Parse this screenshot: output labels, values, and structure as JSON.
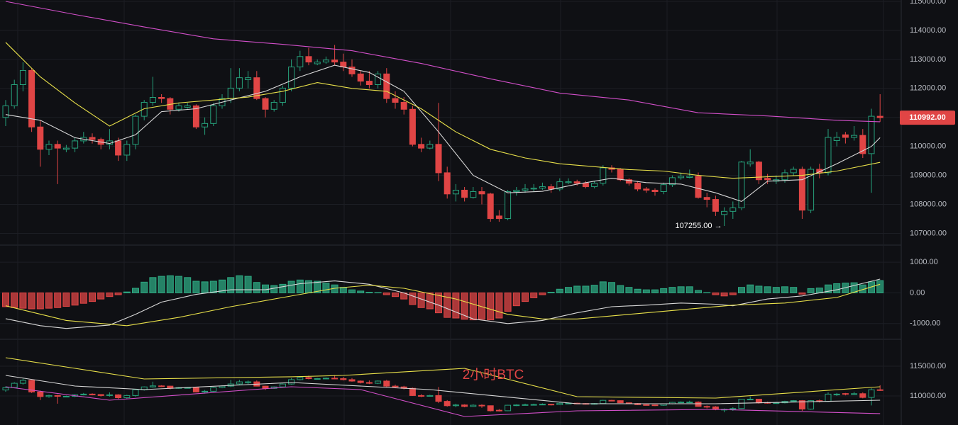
{
  "chart_data": [
    {
      "type": "candlestick",
      "up_color": "#26a17b",
      "down_color": "#e04545",
      "ylim": [
        106620,
        115050
      ],
      "yticks": [
        {
          "value": 107000,
          "label": "107000.00"
        },
        {
          "value": 108000,
          "label": "108000.00"
        },
        {
          "value": 109000,
          "label": "109000.00"
        },
        {
          "value": 110000,
          "label": "110000.00"
        },
        {
          "value": 111000,
          "label": "111000.00"
        },
        {
          "value": 112000,
          "label": "112000.00"
        },
        {
          "value": 113000,
          "label": "113000.00"
        },
        {
          "value": 114000,
          "label": "114000.00"
        },
        {
          "value": 115000,
          "label": "115000.00"
        }
      ],
      "grid": true,
      "last_price": {
        "value": 110992,
        "label": "110992.00"
      },
      "low_annotation": {
        "value": 107255,
        "label": "107255.00 →"
      },
      "candles": [
        [
          111000,
          111600,
          110700,
          111400
        ],
        [
          111400,
          112300,
          111300,
          112130
        ],
        [
          112130,
          112900,
          111900,
          112620
        ],
        [
          112620,
          112700,
          110500,
          110670
        ],
        [
          110670,
          110900,
          109300,
          109900
        ],
        [
          109900,
          110200,
          109700,
          110070
        ],
        [
          110070,
          110200,
          108700,
          109940
        ],
        [
          109900,
          110050,
          109800,
          109940
        ],
        [
          109940,
          110300,
          109800,
          110190
        ],
        [
          110190,
          110500,
          110100,
          110310
        ],
        [
          110310,
          110450,
          110100,
          110240
        ],
        [
          110240,
          110300,
          109900,
          110070
        ],
        [
          110070,
          110600,
          109900,
          110190
        ],
        [
          110190,
          110300,
          109500,
          109700
        ],
        [
          109700,
          110200,
          109500,
          110070
        ],
        [
          110070,
          111100,
          109900,
          111040
        ],
        [
          111040,
          111600,
          110900,
          111520
        ],
        [
          111520,
          112400,
          111400,
          111690
        ],
        [
          111690,
          111800,
          111500,
          111650
        ],
        [
          111650,
          111700,
          111100,
          111280
        ],
        [
          111280,
          111500,
          111200,
          111400
        ],
        [
          111350,
          111500,
          111300,
          111400
        ],
        [
          111400,
          111450,
          110600,
          110670
        ],
        [
          110670,
          111000,
          110400,
          110790
        ],
        [
          110790,
          111500,
          110700,
          111400
        ],
        [
          111400,
          111800,
          111300,
          111650
        ],
        [
          111650,
          112700,
          111500,
          112010
        ],
        [
          112010,
          112700,
          111900,
          112370
        ],
        [
          112300,
          112600,
          112000,
          112370
        ],
        [
          112370,
          112600,
          111600,
          111650
        ],
        [
          111650,
          111700,
          111000,
          111280
        ],
        [
          111280,
          111600,
          111200,
          111520
        ],
        [
          111520,
          112100,
          111400,
          112010
        ],
        [
          112010,
          113000,
          111900,
          112740
        ],
        [
          112740,
          113300,
          112600,
          113100
        ],
        [
          113100,
          113400,
          112800,
          112910
        ],
        [
          112850,
          113000,
          112800,
          112910
        ],
        [
          112910,
          113100,
          112850,
          112980
        ],
        [
          112980,
          113500,
          112800,
          112910
        ],
        [
          112910,
          113200,
          112600,
          112740
        ],
        [
          112740,
          113000,
          112400,
          112500
        ],
        [
          112500,
          112600,
          112100,
          112250
        ],
        [
          112250,
          112600,
          112000,
          112130
        ],
        [
          112130,
          112600,
          112000,
          112500
        ],
        [
          112500,
          112700,
          111500,
          111650
        ],
        [
          111650,
          111900,
          111300,
          111520
        ],
        [
          111520,
          111700,
          111100,
          111280
        ],
        [
          111280,
          111400,
          110000,
          110070
        ],
        [
          110070,
          110300,
          109800,
          109940
        ],
        [
          109940,
          110200,
          109900,
          110070
        ],
        [
          110070,
          111500,
          108800,
          109090
        ],
        [
          109090,
          109300,
          108200,
          108360
        ],
        [
          108360,
          108700,
          108100,
          108490
        ],
        [
          108490,
          108600,
          108100,
          108240
        ],
        [
          108240,
          108600,
          108200,
          108440
        ],
        [
          108440,
          108600,
          108000,
          108360
        ],
        [
          108360,
          108400,
          107400,
          107510
        ],
        [
          107600,
          107800,
          107400,
          107510
        ],
        [
          107510,
          108500,
          107450,
          108440
        ],
        [
          108440,
          108600,
          108300,
          108490
        ],
        [
          108490,
          108700,
          108400,
          108530
        ],
        [
          108530,
          108700,
          108450,
          108560
        ],
        [
          108560,
          108750,
          108500,
          108610
        ],
        [
          108610,
          108700,
          108400,
          108530
        ],
        [
          108530,
          108900,
          108450,
          108780
        ],
        [
          108750,
          108900,
          108700,
          108780
        ],
        [
          108780,
          108850,
          108650,
          108730
        ],
        [
          108730,
          108800,
          108550,
          108610
        ],
        [
          108610,
          108800,
          108550,
          108730
        ],
        [
          108730,
          109350,
          108650,
          109260
        ],
        [
          109260,
          109350,
          109100,
          109210
        ],
        [
          109210,
          109250,
          108800,
          108850
        ],
        [
          108850,
          108900,
          108650,
          108730
        ],
        [
          108730,
          108800,
          108450,
          108530
        ],
        [
          108530,
          108600,
          108400,
          108490
        ],
        [
          108490,
          108550,
          108300,
          108440
        ],
        [
          108440,
          108750,
          108350,
          108680
        ],
        [
          108680,
          109000,
          108600,
          108920
        ],
        [
          108920,
          109100,
          108850,
          108970
        ],
        [
          108930,
          109200,
          108900,
          108970
        ],
        [
          108970,
          109100,
          108200,
          108240
        ],
        [
          108240,
          108400,
          107900,
          108170
        ],
        [
          108170,
          108300,
          107600,
          107760
        ],
        [
          107650,
          107900,
          107255,
          107760
        ],
        [
          107760,
          108100,
          107500,
          107880
        ],
        [
          107880,
          109500,
          107800,
          109460
        ],
        [
          109400,
          109900,
          109300,
          109460
        ],
        [
          109460,
          109500,
          108700,
          108850
        ],
        [
          108900,
          109050,
          108700,
          108850
        ],
        [
          108800,
          109000,
          108700,
          108850
        ],
        [
          108850,
          109200,
          108750,
          109090
        ],
        [
          109090,
          109300,
          109000,
          109210
        ],
        [
          109210,
          109300,
          107500,
          107800
        ],
        [
          107800,
          109300,
          107700,
          109210
        ],
        [
          109210,
          109400,
          108900,
          109090
        ],
        [
          109090,
          110600,
          109000,
          110310
        ],
        [
          110200,
          110500,
          110000,
          110310
        ],
        [
          110400,
          110500,
          110100,
          110310
        ],
        [
          110310,
          110700,
          110200,
          110380
        ],
        [
          110380,
          110600,
          109600,
          109750
        ],
        [
          109750,
          111300,
          108400,
          111040
        ],
        [
          111040,
          111800,
          110850,
          110992
        ]
      ],
      "series": [
        {
          "color": "#d8d8d8",
          "x": [
            0,
            4,
            8,
            12,
            15,
            18,
            22,
            26,
            30,
            34,
            38,
            42,
            46,
            50,
            54,
            58,
            62,
            66,
            70,
            74,
            78,
            82,
            85,
            88,
            92,
            96,
            100,
            101
          ],
          "values": [
            111100,
            110900,
            110300,
            110100,
            110400,
            111200,
            111300,
            111600,
            111900,
            112400,
            112800,
            112550,
            111900,
            110500,
            109000,
            108400,
            108450,
            108700,
            108900,
            108750,
            108700,
            108400,
            108100,
            108800,
            108850,
            109400,
            110000,
            110300
          ]
        },
        {
          "color": "#e8e04a",
          "x": [
            0,
            4,
            8,
            12,
            16,
            20,
            24,
            28,
            32,
            36,
            40,
            44,
            48,
            52,
            56,
            60,
            64,
            68,
            72,
            76,
            80,
            84,
            88,
            92,
            96,
            101
          ],
          "values": [
            113590,
            112400,
            111500,
            110700,
            111300,
            111500,
            111600,
            111700,
            111900,
            112200,
            112000,
            111900,
            111300,
            110500,
            109900,
            109600,
            109400,
            109300,
            109200,
            109150,
            109000,
            108900,
            108950,
            109000,
            109150,
            109450
          ]
        },
        {
          "color": "#d24fc9",
          "x": [
            0,
            8,
            16,
            24,
            32,
            40,
            48,
            56,
            64,
            72,
            80,
            88,
            96,
            101
          ],
          "values": [
            115000,
            114550,
            114120,
            113710,
            113520,
            113300,
            112860,
            112330,
            111840,
            111600,
            111160,
            111050,
            110900,
            110850
          ]
        }
      ]
    },
    {
      "type": "histogram",
      "up_color": "#2ea882",
      "down_color": "#e04545",
      "ylim": [
        -1490,
        1535
      ],
      "yticks": [
        {
          "value": -1000,
          "label": "-1000.00"
        },
        {
          "value": 0,
          "label": "0.00"
        },
        {
          "value": 1000,
          "label": "1000.00"
        }
      ],
      "grid": true,
      "values": [
        -450,
        -480,
        -500,
        -520,
        -520,
        -500,
        -480,
        -440,
        -400,
        -340,
        -280,
        -200,
        -120,
        -60,
        30,
        150,
        350,
        500,
        540,
        560,
        540,
        500,
        380,
        360,
        380,
        420,
        500,
        560,
        540,
        340,
        260,
        240,
        280,
        380,
        420,
        400,
        380,
        320,
        260,
        180,
        100,
        60,
        20,
        10,
        -60,
        -120,
        -200,
        -380,
        -480,
        -520,
        -650,
        -800,
        -820,
        -860,
        -880,
        -860,
        -880,
        -820,
        -600,
        -420,
        -280,
        -160,
        -60,
        20,
        120,
        180,
        220,
        220,
        250,
        360,
        340,
        240,
        180,
        120,
        100,
        100,
        140,
        180,
        200,
        200,
        80,
        10,
        -60,
        -100,
        -60,
        180,
        260,
        220,
        200,
        180,
        200,
        180,
        -40,
        140,
        160,
        260,
        300,
        320,
        330,
        260,
        360,
        400
      ],
      "series": [
        {
          "color": "#d8d8d8",
          "x": [
            0,
            4,
            7,
            12,
            15,
            18,
            22,
            26,
            30,
            34,
            38,
            42,
            46,
            50,
            54,
            58,
            62,
            66,
            70,
            74,
            78,
            82,
            84,
            88,
            92,
            96,
            101
          ],
          "values": [
            -840,
            -1070,
            -1160,
            -1050,
            -700,
            -300,
            -50,
            100,
            100,
            300,
            390,
            280,
            0,
            -400,
            -850,
            -1000,
            -900,
            -650,
            -450,
            -400,
            -330,
            -370,
            -420,
            -200,
            -100,
            100,
            450
          ]
        },
        {
          "color": "#e8e04a",
          "x": [
            0,
            7,
            14,
            20,
            26,
            32,
            38,
            42,
            46,
            52,
            58,
            62,
            66,
            72,
            78,
            84,
            90,
            96,
            101
          ],
          "values": [
            -420,
            -900,
            -1070,
            -800,
            -450,
            -150,
            150,
            250,
            150,
            -200,
            -700,
            -850,
            -850,
            -700,
            -550,
            -400,
            -330,
            -150,
            280
          ]
        }
      ]
    },
    {
      "type": "candlestick",
      "up_color": "#26a17b",
      "down_color": "#e04545",
      "ylim": [
        105120,
        119400
      ],
      "yticks": [
        {
          "value": 110000,
          "label": "110000.00"
        },
        {
          "value": 115000,
          "label": "115000.00"
        }
      ],
      "grid": true,
      "watermark": "2小时BTC",
      "series": [
        {
          "color": "#e8e04a",
          "x": [
            0,
            8,
            16,
            33,
            39,
            53,
            66,
            82,
            101
          ],
          "values": [
            116430,
            114640,
            112860,
            113220,
            113450,
            114640,
            109880,
            109640,
            111550
          ]
        },
        {
          "color": "#d8d8d8",
          "x": [
            0,
            8,
            16,
            33,
            49,
            66,
            82,
            101
          ],
          "values": [
            113450,
            111670,
            111070,
            112260,
            111070,
            108690,
            108690,
            109290
          ]
        },
        {
          "color": "#d24fc9",
          "x": [
            0,
            12,
            33,
            41,
            53,
            66,
            82,
            101
          ],
          "values": [
            111550,
            109290,
            111550,
            111070,
            106550,
            107500,
            107740,
            107030
          ]
        }
      ]
    }
  ]
}
